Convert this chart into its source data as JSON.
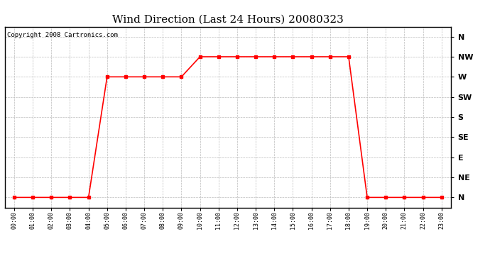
{
  "title": "Wind Direction (Last 24 Hours) 20080323",
  "copyright_text": "Copyright 2008 Cartronics.com",
  "background_color": "#ffffff",
  "plot_bg_color": "#ffffff",
  "grid_color": "#bbbbbb",
  "line_color": "#ff0000",
  "marker_color": "#ff0000",
  "marker_style": "s",
  "marker_size": 3,
  "line_width": 1.2,
  "x_labels": [
    "00:00",
    "01:00",
    "02:00",
    "03:00",
    "04:00",
    "05:00",
    "06:00",
    "07:00",
    "08:00",
    "09:00",
    "10:00",
    "11:00",
    "12:00",
    "13:00",
    "14:00",
    "15:00",
    "16:00",
    "17:00",
    "18:00",
    "19:00",
    "20:00",
    "21:00",
    "22:00",
    "23:00"
  ],
  "y_labels": [
    "N",
    "NE",
    "E",
    "SE",
    "S",
    "SW",
    "W",
    "NW",
    "N"
  ],
  "y_values": [
    0,
    1,
    2,
    3,
    4,
    5,
    6,
    7,
    8
  ],
  "wind_data": {
    "hours": [
      0,
      1,
      2,
      3,
      4,
      5,
      6,
      7,
      8,
      9,
      10,
      11,
      12,
      13,
      14,
      15,
      16,
      17,
      18,
      19,
      20,
      21,
      22,
      23
    ],
    "direction_idx": [
      0,
      0,
      0,
      0,
      0,
      6,
      6,
      6,
      6,
      6,
      7,
      7,
      7,
      7,
      7,
      7,
      7,
      7,
      7,
      0,
      0,
      0,
      0,
      0
    ]
  },
  "ylim": [
    -0.5,
    8.5
  ],
  "xlim": [
    -0.5,
    23.5
  ],
  "title_fontsize": 11,
  "copyright_fontsize": 6.5,
  "xlabel_fontsize": 6,
  "ylabel_fontsize": 8
}
